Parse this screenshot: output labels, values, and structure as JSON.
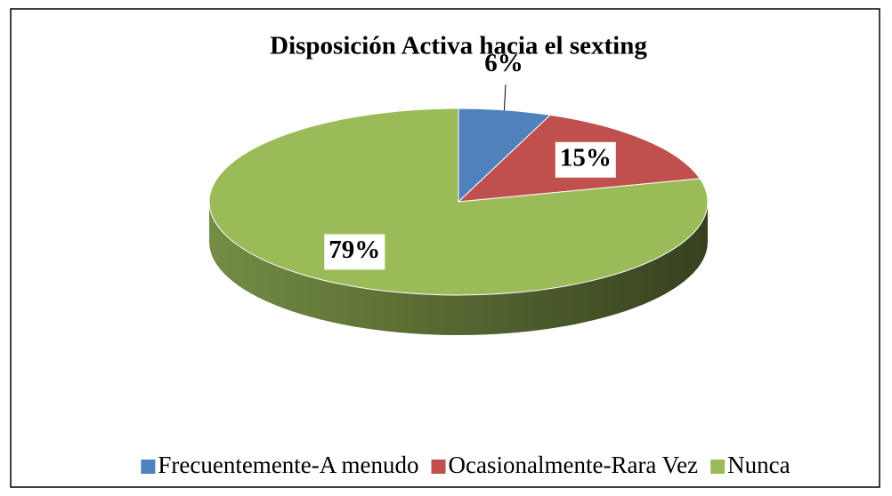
{
  "chart_data": {
    "type": "pie",
    "title": "Disposición Activa hacia el sexting",
    "categories": [
      "Frecuentemente-A menudo",
      "Ocasionalmente-Rara Vez",
      "Nunca"
    ],
    "values": [
      6,
      15,
      79
    ],
    "value_labels": [
      "6%",
      "15%",
      "79%"
    ],
    "colors": [
      "#4f81bd",
      "#c0504d",
      "#9bbb59"
    ],
    "legend": "bottom"
  }
}
